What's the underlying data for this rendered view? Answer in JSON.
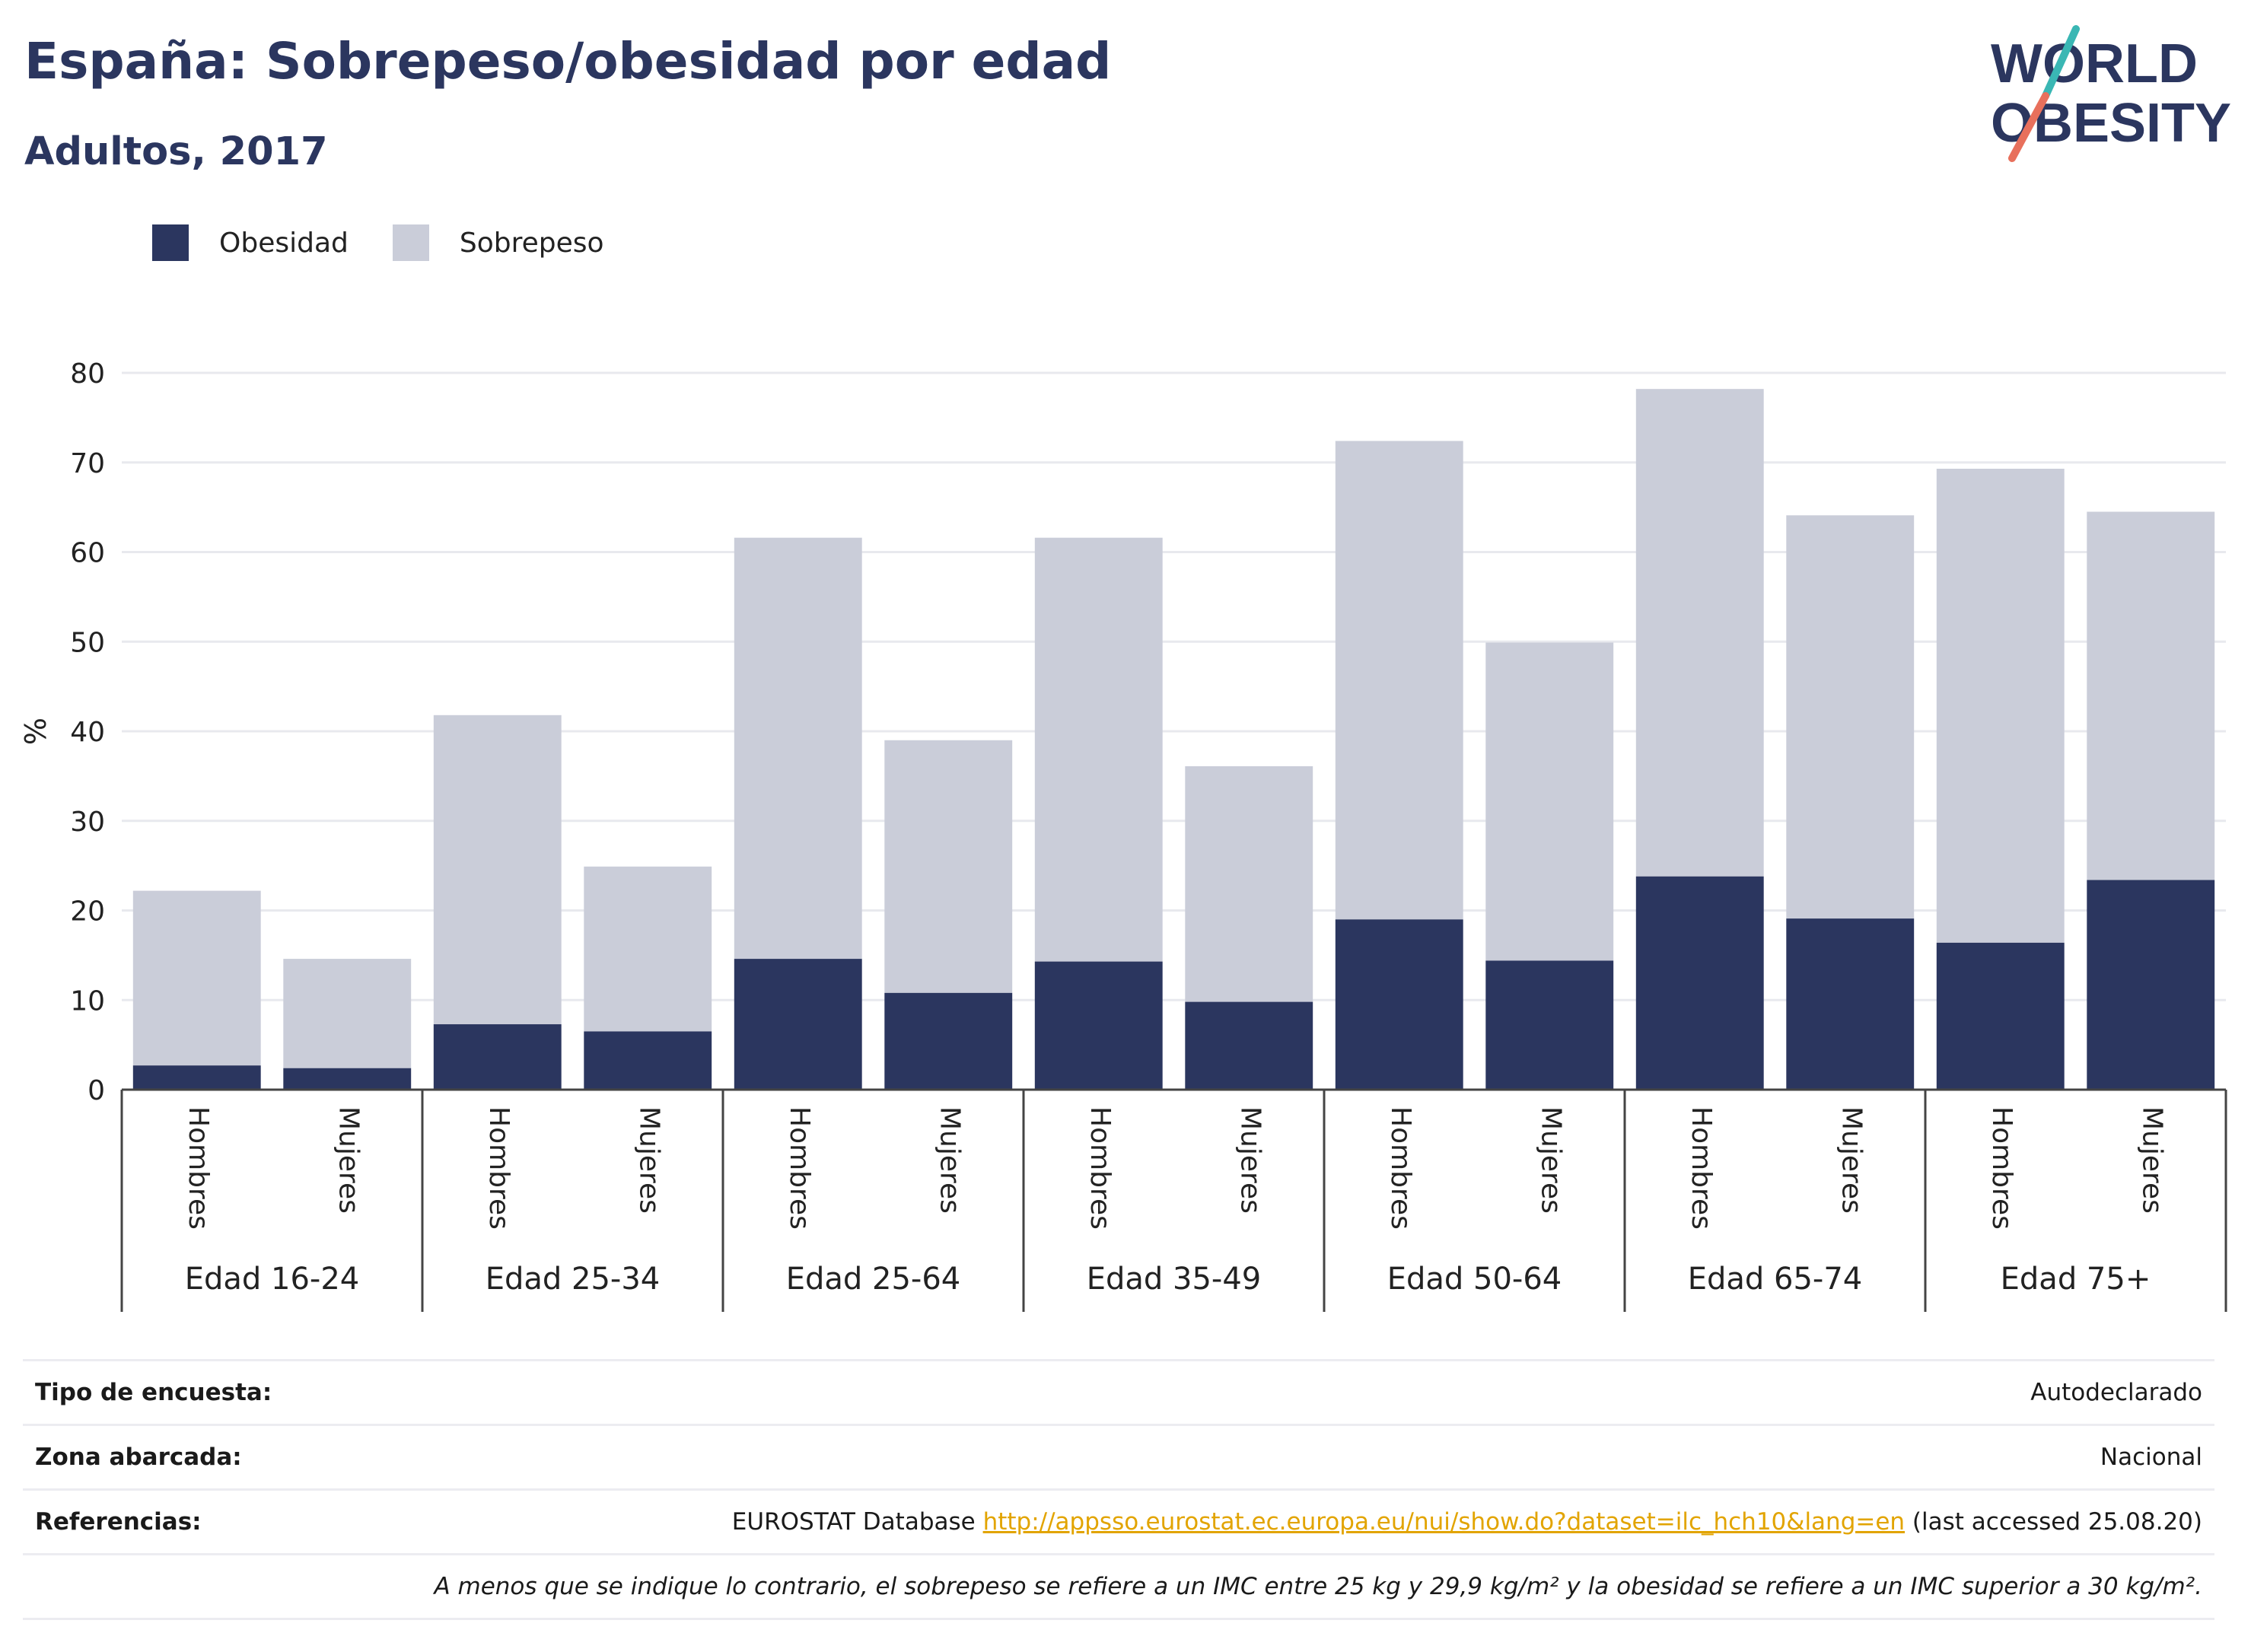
{
  "header": {
    "title": "España: Sobrepeso/obesidad por edad",
    "subtitle": "Adultos, 2017"
  },
  "logo": {
    "line1": "WORLD",
    "line2": "OBESITY"
  },
  "colors": {
    "obesidad": "#2b365f",
    "sobrepeso": "#cacdd9",
    "accent_teal": "#3ab7b4",
    "accent_red": "#e8705c"
  },
  "chart_data": {
    "type": "bar",
    "stacked": true,
    "title": "",
    "ylabel": "%",
    "xlabel": "",
    "ylim": [
      0,
      80
    ],
    "yticks": [
      0,
      10,
      20,
      30,
      40,
      50,
      60,
      70,
      80
    ],
    "legend_position": "top-left",
    "grid": true,
    "groups": [
      "Edad 16-24",
      "Edad 25-34",
      "Edad 25-64",
      "Edad 35-49",
      "Edad 50-64",
      "Edad 65-74",
      "Edad 75+"
    ],
    "sub_categories": [
      "Hombres",
      "Mujeres"
    ],
    "series": [
      {
        "name": "Obesidad",
        "values": [
          2.7,
          2.4,
          7.3,
          6.5,
          14.6,
          10.8,
          14.3,
          9.8,
          19.0,
          14.4,
          23.8,
          19.1,
          16.4,
          23.4
        ]
      },
      {
        "name": "Sobrepeso",
        "values": [
          19.5,
          12.2,
          34.5,
          18.4,
          47.0,
          28.2,
          47.3,
          26.3,
          53.4,
          35.5,
          54.4,
          45.0,
          52.9,
          41.1
        ]
      }
    ]
  },
  "info": {
    "survey_label": "Tipo de encuesta:",
    "survey_value": "Autodeclarado",
    "area_label": "Zona abarcada:",
    "area_value": "Nacional",
    "refs_label": "Referencias:",
    "refs_prefix": "EUROSTAT Database ",
    "refs_link": "http://appsso.eurostat.ec.europa.eu/nui/show.do?dataset=ilc_hch10&lang=en",
    "refs_suffix": " (last accessed 25.08.20)",
    "note": "A menos que se indique lo contrario, el sobrepeso se refiere a un IMC entre 25 kg y 29,9 kg/m² y la obesidad se refiere a un IMC superior a 30 kg/m²."
  }
}
